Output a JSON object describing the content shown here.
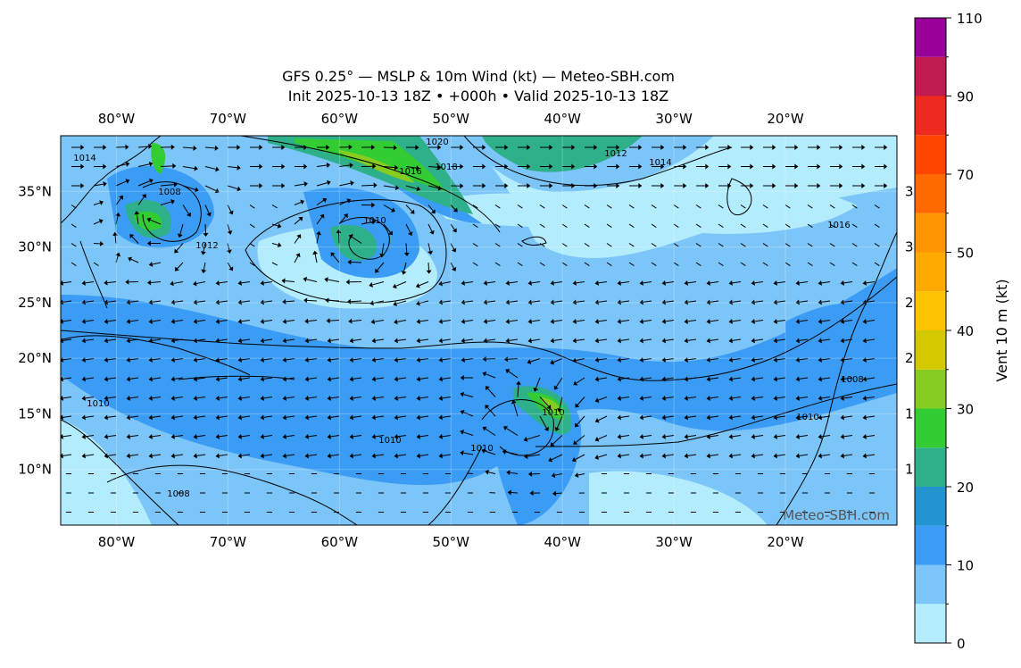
{
  "map": {
    "title": "GFS 0.25° — MSLP & 10m Wind (kt) — Meteo-SBH.com",
    "subtitle": "Init 2025-10-13 18Z • +000h • Valid 2025-10-13 18Z",
    "lonlim": [
      -85,
      -10
    ],
    "latlim": [
      5,
      40
    ],
    "lonticks": [
      {
        "value": -80,
        "label": "80°W"
      },
      {
        "value": -70,
        "label": "70°W"
      },
      {
        "value": -60,
        "label": "60°W"
      },
      {
        "value": -50,
        "label": "50°W"
      },
      {
        "value": -40,
        "label": "40°W"
      },
      {
        "value": -30,
        "label": "30°W"
      },
      {
        "value": -20,
        "label": "20°W"
      }
    ],
    "latticks": [
      {
        "value": 10,
        "label": "10°N"
      },
      {
        "value": 15,
        "label": "15°N"
      },
      {
        "value": 20,
        "label": "20°N"
      },
      {
        "value": 25,
        "label": "25°N"
      },
      {
        "value": 30,
        "label": "30°N"
      },
      {
        "value": 35,
        "label": "35°N"
      }
    ],
    "contour_labels": [
      1014,
      1020,
      1012,
      1014,
      1016,
      1018,
      1008,
      1010,
      1012,
      1010,
      1008,
      1010,
      1010,
      1010,
      1008,
      1016,
      1010
    ],
    "watermark": "Meteo-SBH.com",
    "colorbar": {
      "label": "Vent 10 m (kt)",
      "levels": [
        0,
        5,
        10,
        15,
        20,
        25,
        30,
        35,
        40,
        45,
        50,
        60,
        70,
        80,
        90,
        100,
        110
      ],
      "colors": [
        "#b3ecfd",
        "#7cc5f9",
        "#3a9cf5",
        "#2294cf",
        "#2eb08a",
        "#33cc33",
        "#88cc22",
        "#d4c800",
        "#ffc400",
        "#ffaa00",
        "#ff9500",
        "#ff6a00",
        "#ff4500",
        "#ee2a1e",
        "#c01a50",
        "#990099"
      ],
      "ticks": [
        0,
        10,
        20,
        30,
        40,
        50,
        70,
        90,
        110
      ]
    }
  }
}
